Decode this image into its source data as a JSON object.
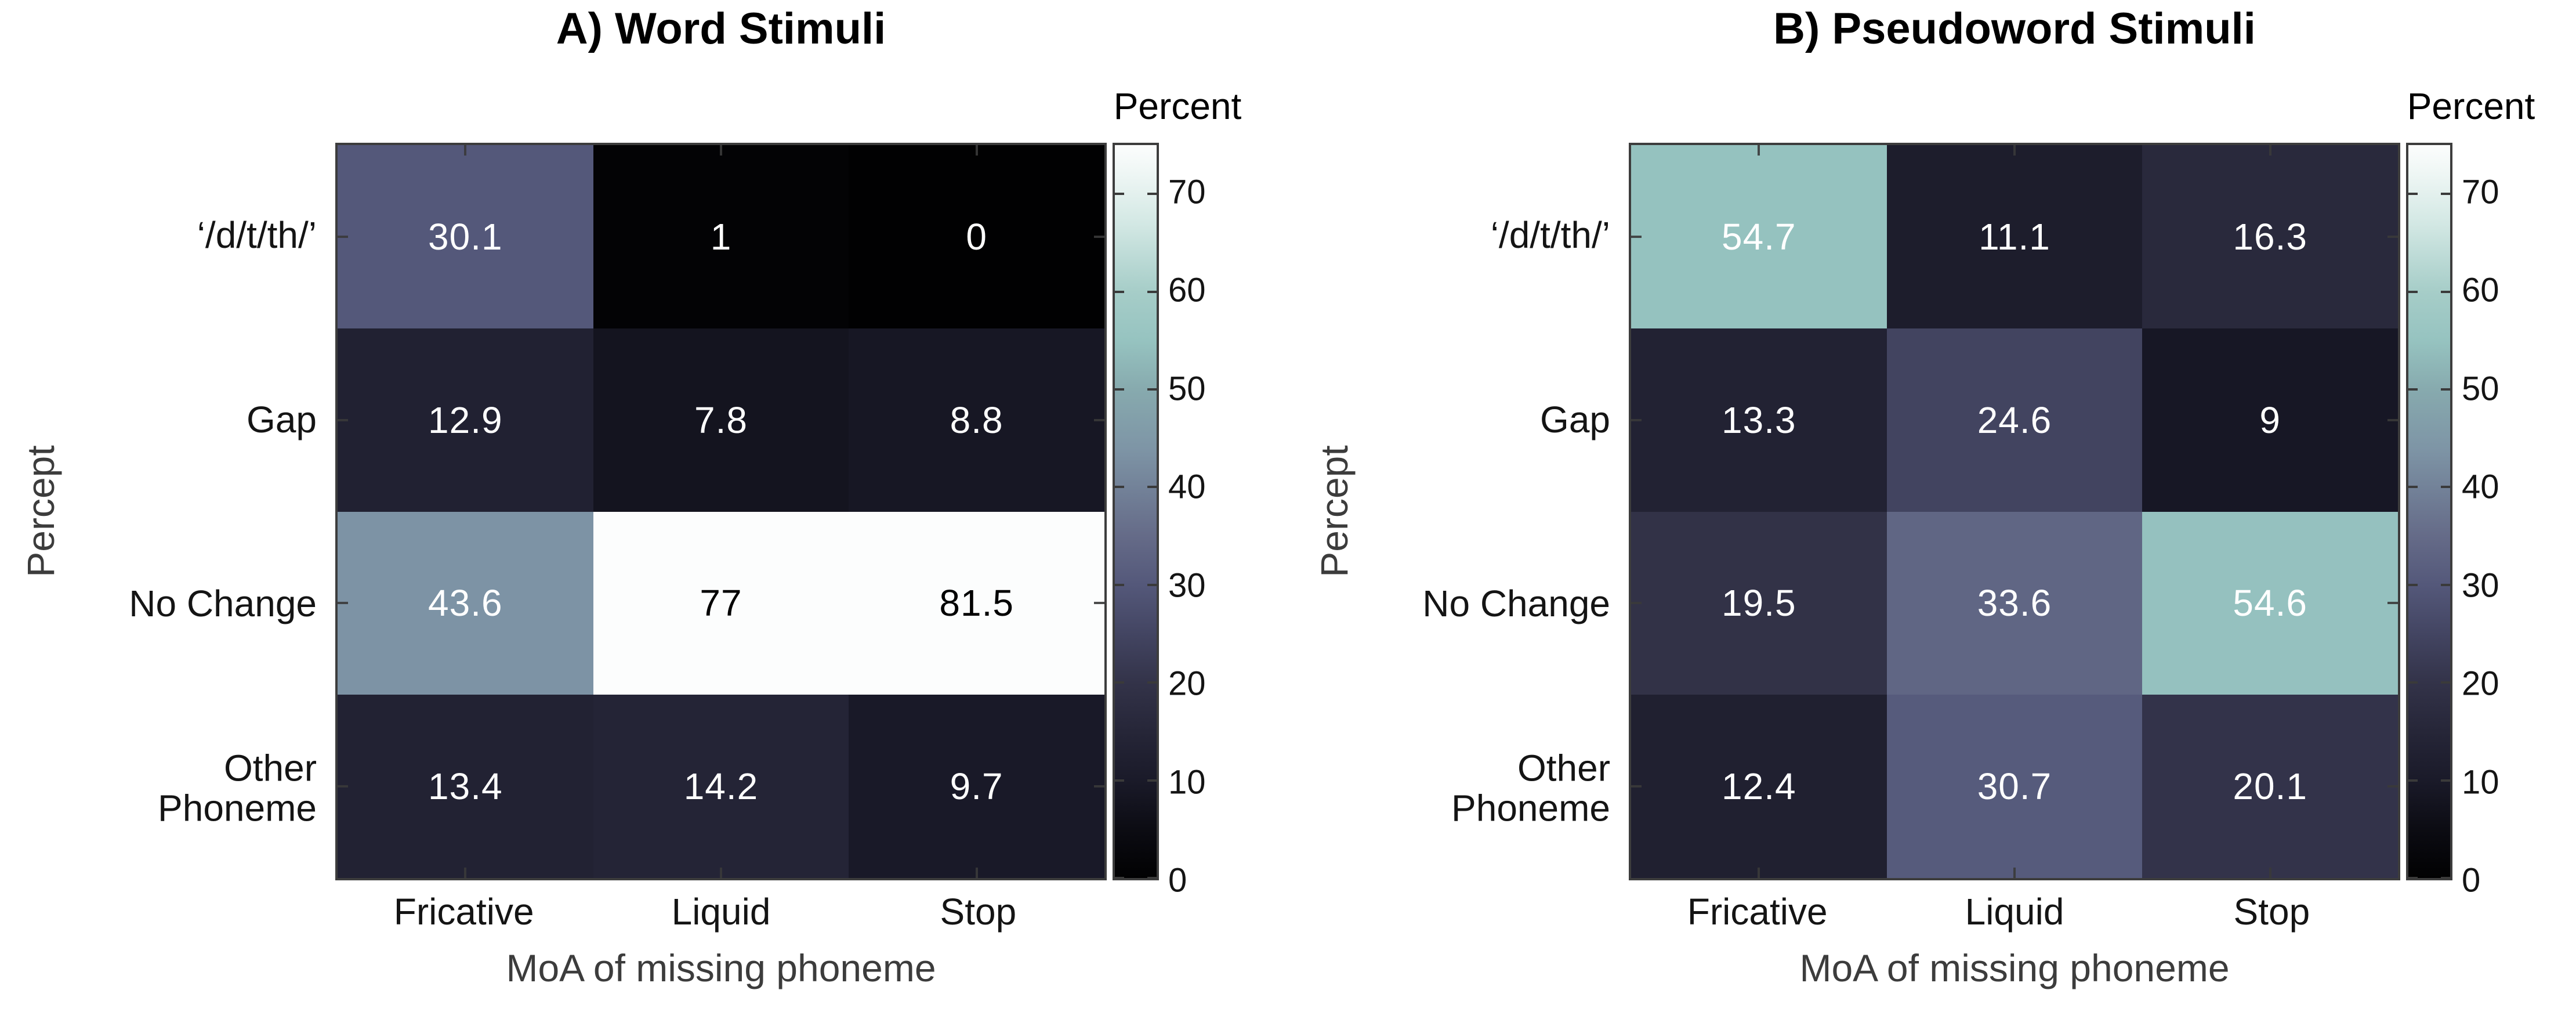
{
  "style": {
    "background": "#ffffff",
    "axis_color": "#3d3d3d",
    "tick_label_color": "#141414",
    "axis_label_color": "#3c3c3c",
    "dark_cell_text": "#ffffff",
    "light_cell_text": "#000000",
    "light_text_threshold": 65
  },
  "colormap": {
    "vmin": 0,
    "vmax": 75,
    "stops": [
      [
        0,
        "#010102"
      ],
      [
        5,
        "#0c0c13"
      ],
      [
        10,
        "#1a1a29"
      ],
      [
        15,
        "#262638"
      ],
      [
        20,
        "#333349"
      ],
      [
        25,
        "#434562"
      ],
      [
        30,
        "#54587a"
      ],
      [
        35,
        "#656b88"
      ],
      [
        44,
        "#7e95a6"
      ],
      [
        50,
        "#87aaae"
      ],
      [
        55,
        "#96c3c0"
      ],
      [
        60,
        "#a6cdc8"
      ],
      [
        67,
        "#d3e8e4"
      ],
      [
        72,
        "#eef6f4"
      ],
      [
        75,
        "#fcfdfd"
      ]
    ]
  },
  "chart_data": [
    {
      "type": "heatmap",
      "title": "A) Word Stimuli",
      "xlabel": "MoA of missing phoneme",
      "ylabel": "Percept",
      "x_categories": [
        "Fricative",
        "Liquid",
        "Stop"
      ],
      "y_categories": [
        "‘/d/t/th/’",
        "Gap",
        "No Change",
        "Other\nPhoneme"
      ],
      "values": [
        [
          30.1,
          1,
          0
        ],
        [
          12.9,
          7.8,
          8.8
        ],
        [
          43.6,
          77,
          81.5
        ],
        [
          13.4,
          14.2,
          9.7
        ]
      ],
      "colorbar_title": "Percent",
      "colorbar_ticks": [
        0,
        10,
        20,
        30,
        40,
        50,
        60,
        70
      ],
      "color_range": [
        0,
        75
      ],
      "legend_position": "right",
      "grid": false
    },
    {
      "type": "heatmap",
      "title": "B) Pseudoword Stimuli",
      "xlabel": "MoA of missing phoneme",
      "ylabel": "Percept",
      "x_categories": [
        "Fricative",
        "Liquid",
        "Stop"
      ],
      "y_categories": [
        "‘/d/t/th/’",
        "Gap",
        "No Change",
        "Other\nPhoneme"
      ],
      "values": [
        [
          54.7,
          11.1,
          16.3
        ],
        [
          13.3,
          24.6,
          9
        ],
        [
          19.5,
          33.6,
          54.6
        ],
        [
          12.4,
          30.7,
          20.1
        ]
      ],
      "colorbar_title": "Percent",
      "colorbar_ticks": [
        0,
        10,
        20,
        30,
        40,
        50,
        60,
        70
      ],
      "color_range": [
        0,
        75
      ],
      "legend_position": "right",
      "grid": false
    }
  ]
}
